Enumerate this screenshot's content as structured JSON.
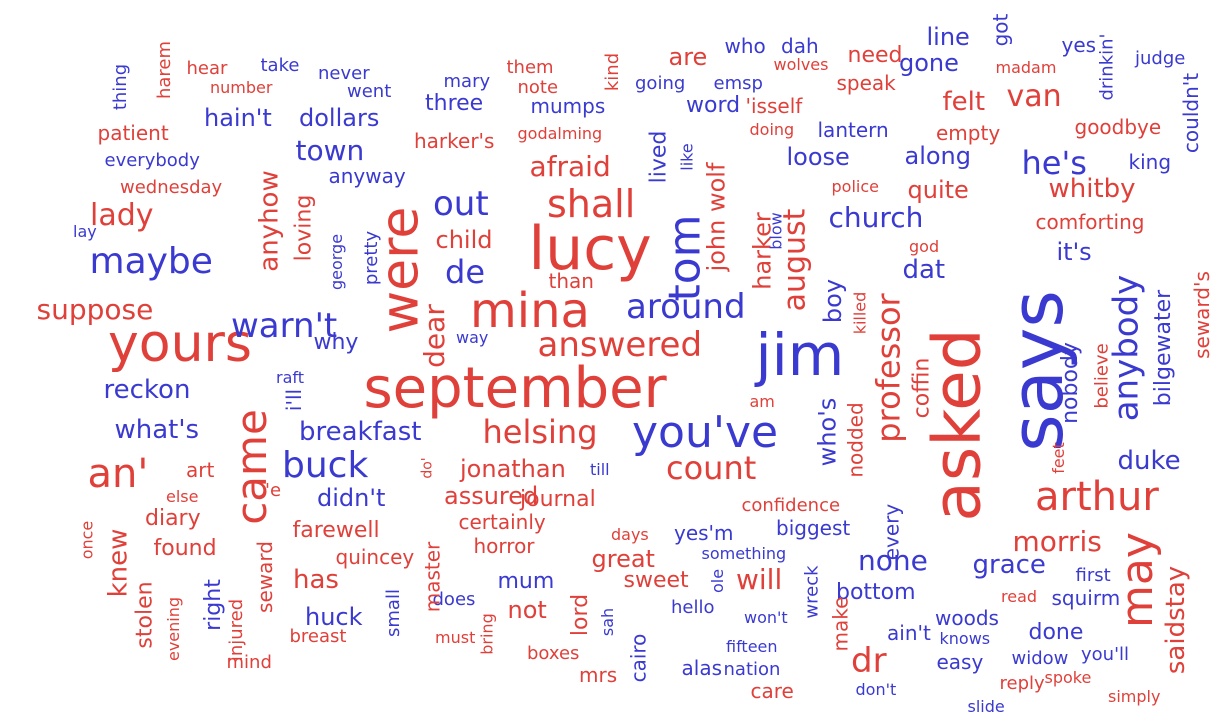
{
  "colors": {
    "red": "#e0403a",
    "blue": "#3a3ad0"
  },
  "words": [
    {
      "t": "says",
      "c": "blue"
    },
    {
      "t": "asked",
      "c": "red"
    },
    {
      "t": "september",
      "c": "red"
    },
    {
      "t": "jim",
      "c": "blue"
    },
    {
      "t": "yours",
      "c": "red"
    },
    {
      "t": "lucy",
      "c": "red"
    },
    {
      "t": "were",
      "c": "red"
    },
    {
      "t": "mina",
      "c": "red"
    },
    {
      "t": "you've",
      "c": "blue"
    },
    {
      "t": "came",
      "c": "red"
    },
    {
      "t": "may",
      "c": "red"
    },
    {
      "t": "arthur",
      "c": "red"
    },
    {
      "t": "tom",
      "c": "blue"
    },
    {
      "t": "buck",
      "c": "blue"
    },
    {
      "t": "an'",
      "c": "red"
    },
    {
      "t": "maybe",
      "c": "blue"
    },
    {
      "t": "warn't",
      "c": "blue"
    },
    {
      "t": "around",
      "c": "blue"
    },
    {
      "t": "answered",
      "c": "red"
    },
    {
      "t": "helsing",
      "c": "red"
    },
    {
      "t": "count",
      "c": "red"
    },
    {
      "t": "anybody",
      "c": "blue"
    },
    {
      "t": "shall",
      "c": "red"
    },
    {
      "t": "afraid",
      "c": "red"
    },
    {
      "t": "he's",
      "c": "blue"
    },
    {
      "t": "professor",
      "c": "red"
    },
    {
      "t": "van",
      "c": "red"
    },
    {
      "t": "lady",
      "c": "red"
    },
    {
      "t": "suppose",
      "c": "red"
    },
    {
      "t": "reckon",
      "c": "blue"
    },
    {
      "t": "what's",
      "c": "blue"
    },
    {
      "t": "breakfast",
      "c": "blue"
    },
    {
      "t": "duke",
      "c": "blue"
    },
    {
      "t": "morris",
      "c": "red"
    },
    {
      "t": "none",
      "c": "blue"
    },
    {
      "t": "grace",
      "c": "blue"
    },
    {
      "t": "dr",
      "c": "red"
    },
    {
      "t": "saidstay",
      "c": "red"
    },
    {
      "t": "church",
      "c": "blue"
    },
    {
      "t": "august",
      "c": "red"
    },
    {
      "t": "harker",
      "c": "red"
    },
    {
      "t": "out",
      "c": "blue"
    },
    {
      "t": "de",
      "c": "blue"
    },
    {
      "t": "dear",
      "c": "red"
    },
    {
      "t": "jonathan",
      "c": "red"
    },
    {
      "t": "assured",
      "c": "red"
    },
    {
      "t": "journal",
      "c": "red"
    },
    {
      "t": "didn't",
      "c": "blue"
    },
    {
      "t": "has",
      "c": "red"
    },
    {
      "t": "huck",
      "c": "blue"
    },
    {
      "t": "will",
      "c": "red"
    },
    {
      "t": "town",
      "c": "blue"
    },
    {
      "t": "hain't",
      "c": "blue"
    },
    {
      "t": "dollars",
      "c": "blue"
    },
    {
      "t": "three",
      "c": "blue"
    },
    {
      "t": "word",
      "c": "blue"
    },
    {
      "t": "felt",
      "c": "red"
    },
    {
      "t": "whitby",
      "c": "red"
    },
    {
      "t": "quite",
      "c": "red"
    },
    {
      "t": "along",
      "c": "blue"
    },
    {
      "t": "loose",
      "c": "blue"
    },
    {
      "t": "line",
      "c": "blue"
    },
    {
      "t": "gone",
      "c": "blue"
    },
    {
      "t": "are",
      "c": "red"
    },
    {
      "t": "child",
      "c": "red"
    },
    {
      "t": "anyhow",
      "c": "red"
    },
    {
      "t": "loving",
      "c": "red"
    },
    {
      "t": "why",
      "c": "blue"
    },
    {
      "t": "dat",
      "c": "blue"
    },
    {
      "t": "it's",
      "c": "blue"
    },
    {
      "t": "boy",
      "c": "blue"
    },
    {
      "t": "who's",
      "c": "blue"
    },
    {
      "t": "nobody",
      "c": "blue"
    },
    {
      "t": "bilgewater",
      "c": "blue"
    },
    {
      "t": "seward's",
      "c": "red"
    },
    {
      "t": "believe",
      "c": "red"
    },
    {
      "t": "coffin",
      "c": "red"
    },
    {
      "t": "nodded",
      "c": "red"
    },
    {
      "t": "feet",
      "c": "red"
    },
    {
      "t": "comforting",
      "c": "red"
    },
    {
      "t": "king",
      "c": "blue"
    },
    {
      "t": "couldn't",
      "c": "blue"
    },
    {
      "t": "goodbye",
      "c": "red"
    },
    {
      "t": "empty",
      "c": "red"
    },
    {
      "t": "lantern",
      "c": "blue"
    },
    {
      "t": "doing",
      "c": "red"
    },
    {
      "t": "'isself",
      "c": "red"
    },
    {
      "t": "speak",
      "c": "red"
    },
    {
      "t": "need",
      "c": "red"
    },
    {
      "t": "wolves",
      "c": "red"
    },
    {
      "t": "madam",
      "c": "red"
    },
    {
      "t": "judge",
      "c": "blue"
    },
    {
      "t": "yes",
      "c": "blue"
    },
    {
      "t": "drinkin'",
      "c": "blue"
    },
    {
      "t": "got",
      "c": "blue"
    },
    {
      "t": "who",
      "c": "blue"
    },
    {
      "t": "dah",
      "c": "blue"
    },
    {
      "t": "emsp",
      "c": "blue"
    },
    {
      "t": "going",
      "c": "blue"
    },
    {
      "t": "kind",
      "c": "red"
    },
    {
      "t": "note",
      "c": "red"
    },
    {
      "t": "them",
      "c": "red"
    },
    {
      "t": "mumps",
      "c": "blue"
    },
    {
      "t": "mary",
      "c": "blue"
    },
    {
      "t": "went",
      "c": "blue"
    },
    {
      "t": "never",
      "c": "blue"
    },
    {
      "t": "number",
      "c": "red"
    },
    {
      "t": "take",
      "c": "blue"
    },
    {
      "t": "hear",
      "c": "red"
    },
    {
      "t": "harem",
      "c": "red"
    },
    {
      "t": "thing",
      "c": "blue"
    },
    {
      "t": "patient",
      "c": "red"
    },
    {
      "t": "everybody",
      "c": "blue"
    },
    {
      "t": "wednesday",
      "c": "red"
    },
    {
      "t": "lay",
      "c": "blue"
    },
    {
      "t": "harker's",
      "c": "red"
    },
    {
      "t": "godalming",
      "c": "red"
    },
    {
      "t": "anyway",
      "c": "blue"
    },
    {
      "t": "george",
      "c": "blue"
    },
    {
      "t": "pretty",
      "c": "blue"
    },
    {
      "t": "than",
      "c": "red"
    },
    {
      "t": "way",
      "c": "blue"
    },
    {
      "t": "john wolf",
      "c": "red"
    },
    {
      "t": "lived",
      "c": "blue"
    },
    {
      "t": "like",
      "c": "blue"
    },
    {
      "t": "blow",
      "c": "blue"
    },
    {
      "t": "killed",
      "c": "red"
    },
    {
      "t": "police",
      "c": "red"
    },
    {
      "t": "god",
      "c": "red"
    },
    {
      "t": "raft",
      "c": "blue"
    },
    {
      "t": "i'll",
      "c": "blue"
    },
    {
      "t": "am",
      "c": "red"
    },
    {
      "t": "art",
      "c": "red"
    },
    {
      "t": "else",
      "c": "red"
    },
    {
      "t": "'e",
      "c": "red"
    },
    {
      "t": "do'",
      "c": "red"
    },
    {
      "t": "till",
      "c": "blue"
    },
    {
      "t": "diary",
      "c": "red"
    },
    {
      "t": "knew",
      "c": "red"
    },
    {
      "t": "once",
      "c": "red"
    },
    {
      "t": "found",
      "c": "red"
    },
    {
      "t": "farewell",
      "c": "red"
    },
    {
      "t": "certainly",
      "c": "red"
    },
    {
      "t": "confidence",
      "c": "red"
    },
    {
      "t": "biggest",
      "c": "blue"
    },
    {
      "t": "yes'm",
      "c": "blue"
    },
    {
      "t": "every",
      "c": "blue"
    },
    {
      "t": "days",
      "c": "red"
    },
    {
      "t": "horror",
      "c": "red"
    },
    {
      "t": "quincey",
      "c": "red"
    },
    {
      "t": "great",
      "c": "red"
    },
    {
      "t": "something",
      "c": "blue"
    },
    {
      "t": "sweet",
      "c": "red"
    },
    {
      "t": "mum",
      "c": "blue"
    },
    {
      "t": "ole",
      "c": "blue"
    },
    {
      "t": "wreck",
      "c": "blue"
    },
    {
      "t": "bottom",
      "c": "blue"
    },
    {
      "t": "first",
      "c": "blue"
    },
    {
      "t": "squirm",
      "c": "blue"
    },
    {
      "t": "read",
      "c": "red"
    },
    {
      "t": "woods",
      "c": "blue"
    },
    {
      "t": "done",
      "c": "blue"
    },
    {
      "t": "knows",
      "c": "blue"
    },
    {
      "t": "widow",
      "c": "blue"
    },
    {
      "t": "you'll",
      "c": "blue"
    },
    {
      "t": "easy",
      "c": "blue"
    },
    {
      "t": "ain't",
      "c": "blue"
    },
    {
      "t": "won't",
      "c": "blue"
    },
    {
      "t": "make",
      "c": "red"
    },
    {
      "t": "hello",
      "c": "blue"
    },
    {
      "t": "fifteen",
      "c": "blue"
    },
    {
      "t": "nation",
      "c": "blue"
    },
    {
      "t": "alas",
      "c": "blue"
    },
    {
      "t": "care",
      "c": "red"
    },
    {
      "t": "don't",
      "c": "blue"
    },
    {
      "t": "reply",
      "c": "red"
    },
    {
      "t": "spoke",
      "c": "red"
    },
    {
      "t": "simply",
      "c": "red"
    },
    {
      "t": "slide",
      "c": "blue"
    },
    {
      "t": "boxes",
      "c": "red"
    },
    {
      "t": "mrs",
      "c": "red"
    },
    {
      "t": "cairo",
      "c": "blue"
    },
    {
      "t": "sah",
      "c": "blue"
    },
    {
      "t": "lord",
      "c": "red"
    },
    {
      "t": "not",
      "c": "red"
    },
    {
      "t": "bring",
      "c": "red"
    },
    {
      "t": "must",
      "c": "red"
    },
    {
      "t": "does",
      "c": "blue"
    },
    {
      "t": "master",
      "c": "red"
    },
    {
      "t": "small",
      "c": "blue"
    },
    {
      "t": "breast",
      "c": "red"
    },
    {
      "t": "seward",
      "c": "red"
    },
    {
      "t": "injured",
      "c": "red"
    },
    {
      "t": "mind",
      "c": "red"
    },
    {
      "t": "right",
      "c": "blue"
    },
    {
      "t": "evening",
      "c": "red"
    },
    {
      "t": "stolen",
      "c": "red"
    }
  ]
}
